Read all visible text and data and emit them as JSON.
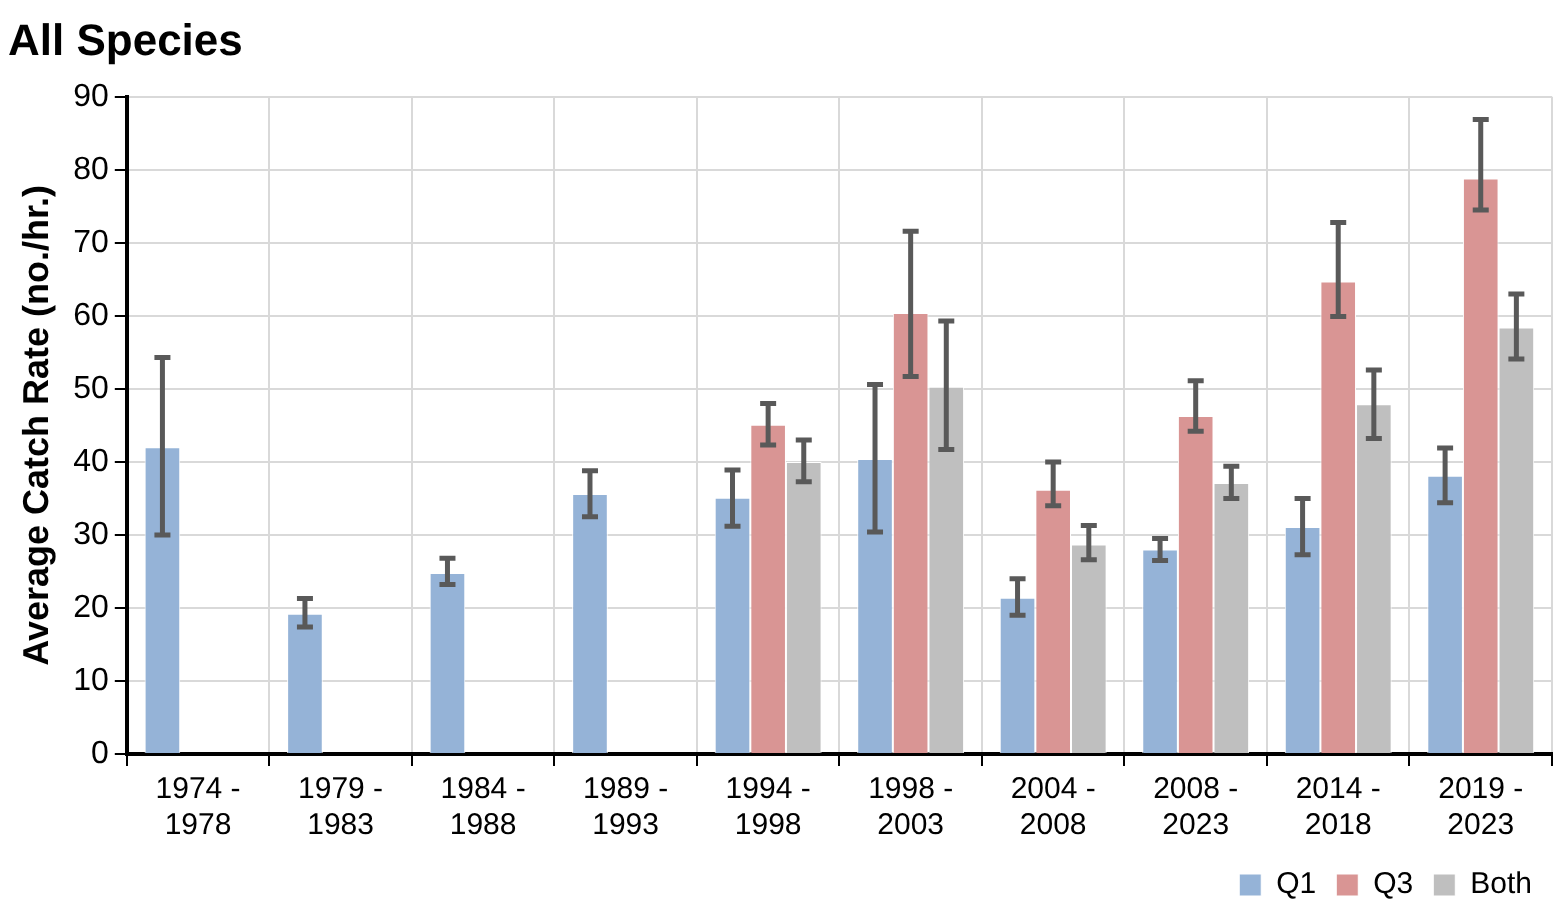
{
  "chart_data": {
    "type": "bar",
    "title": "All Species",
    "ylabel": "Average Catch Rate (no./hr.)",
    "categories": [
      "1974 - 1978",
      "1979 - 1983",
      "1984 - 1988",
      "1989 - 1993",
      "1994 - 1998",
      "1998 - 2003",
      "2004 - 2008",
      "2008 - 2023",
      "2014 - 2018",
      "2019 - 2023"
    ],
    "series": [
      {
        "name": "Q1",
        "color": "#95b3d7",
        "values": [
          42.0,
          19.2,
          24.8,
          35.6,
          35.1,
          40.4,
          21.4,
          28.0,
          31.1,
          38.1
        ],
        "errors": [
          [
            30.0,
            54.3
          ],
          [
            17.4,
            21.3
          ],
          [
            23.2,
            26.8
          ],
          [
            32.5,
            38.8
          ],
          [
            31.2,
            38.9
          ],
          [
            30.4,
            50.6
          ],
          [
            19.0,
            24.0
          ],
          [
            26.5,
            29.5
          ],
          [
            27.3,
            35.0
          ],
          [
            34.4,
            41.9
          ]
        ]
      },
      {
        "name": "Q3",
        "color": "#d99594",
        "values": [
          null,
          null,
          null,
          null,
          45.1,
          60.4,
          36.2,
          46.3,
          64.7,
          78.8
        ],
        "errors": [
          null,
          null,
          null,
          null,
          [
            42.3,
            48.0
          ],
          [
            51.7,
            71.6
          ],
          [
            34.0,
            40.0
          ],
          [
            44.2,
            51.1
          ],
          [
            59.9,
            72.8
          ],
          [
            74.5,
            86.9
          ]
        ]
      },
      {
        "name": "Both",
        "color": "#bfbfbf",
        "values": [
          null,
          null,
          null,
          null,
          40.0,
          50.3,
          28.7,
          37.1,
          47.9,
          58.4
        ],
        "errors": [
          null,
          null,
          null,
          null,
          [
            37.3,
            43.0
          ],
          [
            41.7,
            59.3
          ],
          [
            26.6,
            31.3
          ],
          [
            35.0,
            39.4
          ],
          [
            43.2,
            52.6
          ],
          [
            54.1,
            63.0
          ]
        ]
      }
    ],
    "ylim": [
      0,
      90
    ],
    "yticks": [
      0,
      10,
      20,
      30,
      40,
      50,
      60,
      70,
      80,
      90
    ],
    "grid": true,
    "legend": "bottom right"
  }
}
